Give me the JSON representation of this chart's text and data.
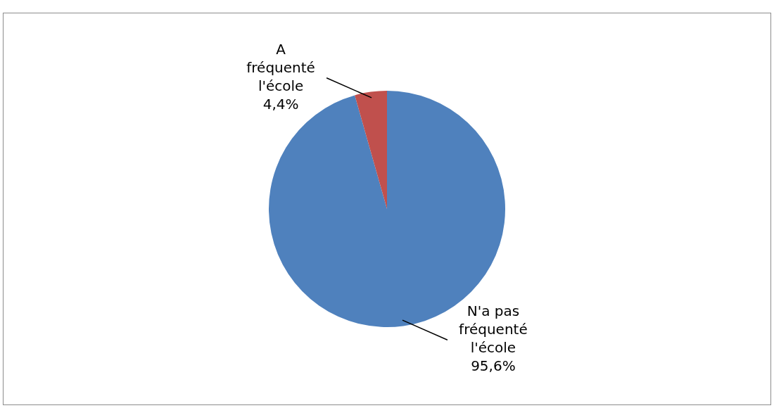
{
  "chart_data": {
    "type": "pie",
    "categories": [
      "N'a pas fréquenté l'école",
      "A fréquenté l'école"
    ],
    "values": [
      95.6,
      4.4
    ],
    "colors": [
      "#4f81bd",
      "#c0504d"
    ],
    "value_labels": [
      "95,6%",
      "4,4%"
    ],
    "legend": false
  }
}
